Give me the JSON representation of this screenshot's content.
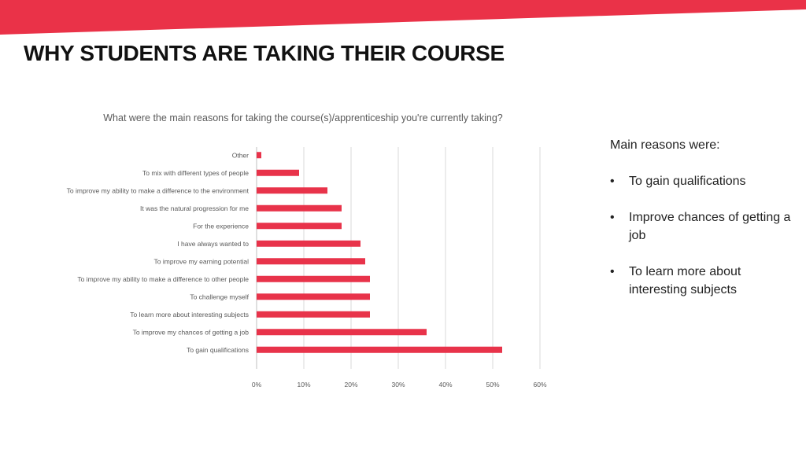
{
  "slide": {
    "title": "WHY STUDENTS ARE TAKING THEIR COURSE",
    "accent_color": "#ea3248"
  },
  "chart_data": {
    "type": "bar",
    "orientation": "horizontal",
    "title": "What were the main reasons for taking the course(s)/apprenticeship you're currently taking?",
    "categories": [
      "Other",
      "To mix with different types of people",
      "To improve my ability to make a difference to the environment",
      "It was the natural progression for me",
      "For the experience",
      "I have always wanted to",
      "To improve my earning potential",
      "To improve my ability to make a difference to other people",
      "To challenge myself",
      "To learn more about interesting subjects",
      "To improve my chances of getting a job",
      "To gain qualifications"
    ],
    "values": [
      1,
      9,
      15,
      18,
      18,
      22,
      23,
      24,
      24,
      24,
      36,
      52
    ],
    "value_unit": "%",
    "xlim": [
      0,
      60
    ],
    "xticks": [
      0,
      10,
      20,
      30,
      40,
      50,
      60
    ],
    "xtick_labels": [
      "0%",
      "10%",
      "20%",
      "30%",
      "40%",
      "50%",
      "60%"
    ],
    "grid": "vertical",
    "legend": "none",
    "bar_color": "#e8334a"
  },
  "sidebar": {
    "heading": "Main reasons were:",
    "items": [
      "To gain qualifications",
      "Improve chances of getting a job",
      "To learn more about interesting subjects"
    ]
  }
}
